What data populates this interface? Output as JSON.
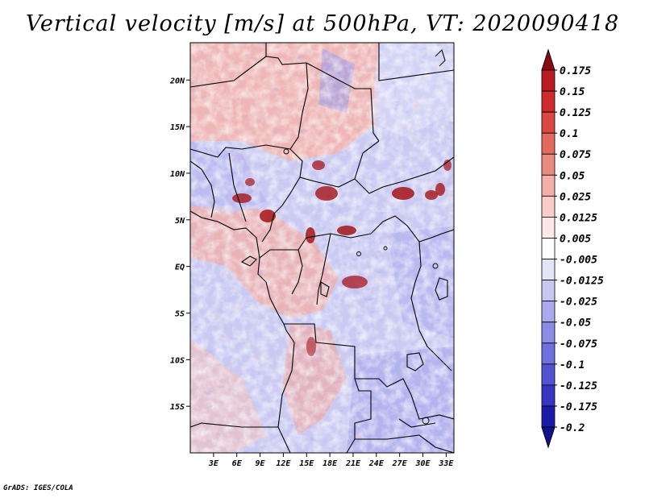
{
  "title": "Vertical velocity [m/s] at 500hPa, VT: 2020090418",
  "credit": "GrADS: IGES/COLA",
  "map": {
    "variable": "Vertical velocity",
    "units": "m/s",
    "level": "500hPa",
    "valid_time": "2020090418",
    "lon_range": [
      0,
      34
    ],
    "lat_range": [
      -20,
      24
    ],
    "lat_ticks": [
      {
        "value": 20,
        "label": "20N"
      },
      {
        "value": 15,
        "label": "15N"
      },
      {
        "value": 10,
        "label": "10N"
      },
      {
        "value": 5,
        "label": "5N"
      },
      {
        "value": 0,
        "label": "EQ"
      },
      {
        "value": -5,
        "label": "5S"
      },
      {
        "value": -10,
        "label": "10S"
      },
      {
        "value": -15,
        "label": "15S"
      }
    ],
    "lon_ticks": [
      {
        "value": 3,
        "label": "3E"
      },
      {
        "value": 6,
        "label": "6E"
      },
      {
        "value": 9,
        "label": "9E"
      },
      {
        "value": 12,
        "label": "12E"
      },
      {
        "value": 15,
        "label": "15E"
      },
      {
        "value": 18,
        "label": "18E"
      },
      {
        "value": 21,
        "label": "21E"
      },
      {
        "value": 24,
        "label": "24E"
      },
      {
        "value": 27,
        "label": "27E"
      },
      {
        "value": 30,
        "label": "30E"
      },
      {
        "value": 33,
        "label": "33E"
      }
    ]
  },
  "colorbar": {
    "levels": [
      {
        "label": "0.175",
        "color": "#a50f15"
      },
      {
        "label": "0.15",
        "color": "#b81c22"
      },
      {
        "label": "0.125",
        "color": "#cb2b2b"
      },
      {
        "label": "0.1",
        "color": "#d9473f"
      },
      {
        "label": "0.075",
        "color": "#e26a5d"
      },
      {
        "label": "0.05",
        "color": "#eb8b80"
      },
      {
        "label": "0.025",
        "color": "#f3aea5"
      },
      {
        "label": "0.0125",
        "color": "#f8cdc8"
      },
      {
        "label": "0.005",
        "color": "#fce8e5"
      },
      {
        "label": "-0.005",
        "color": "#ffffff"
      },
      {
        "label": "-0.0125",
        "color": "#e4e4f9"
      },
      {
        "label": "-0.025",
        "color": "#c7c7f3"
      },
      {
        "label": "-0.05",
        "color": "#aaaaee"
      },
      {
        "label": "-0.075",
        "color": "#8c8ce6"
      },
      {
        "label": "-0.1",
        "color": "#6f6fde"
      },
      {
        "label": "-0.125",
        "color": "#5252d2"
      },
      {
        "label": "-0.175",
        "color": "#3535c2"
      },
      {
        "label": "-0.2",
        "color": "#1a1aa8"
      }
    ],
    "top_color": "#8b0a12",
    "bottom_color": "#121290"
  }
}
